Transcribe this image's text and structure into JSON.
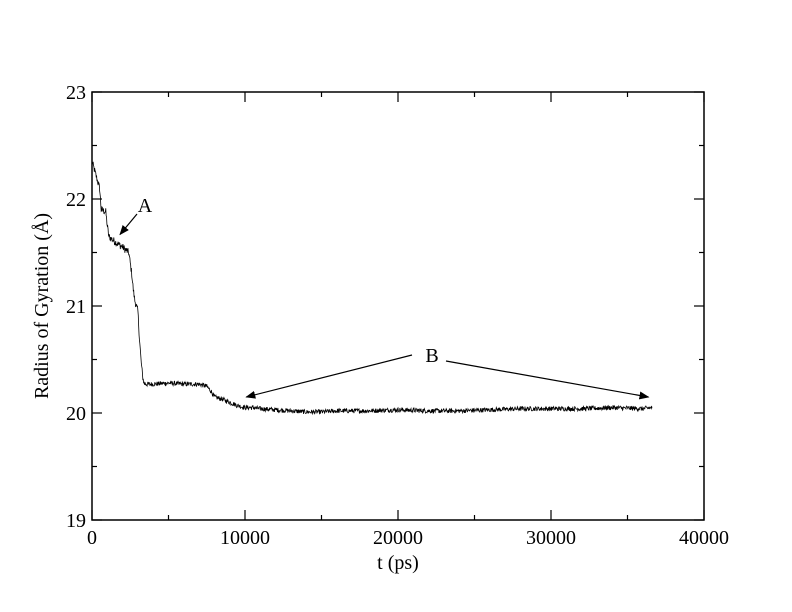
{
  "chart_data": {
    "type": "line",
    "title": "",
    "xlabel": "t (ps)",
    "ylabel": "Radius of Gyration (Å)",
    "xlim": [
      0,
      40000
    ],
    "ylim": [
      19,
      23
    ],
    "xticks": [
      "0",
      "10000",
      "20000",
      "30000",
      "40000"
    ],
    "yticks": [
      "19",
      "20",
      "21",
      "22",
      "23"
    ],
    "grid": false,
    "legend": "none",
    "series": [
      {
        "color": "#000000",
        "x": [
          0,
          300,
          500,
          600,
          900,
          1000,
          1100,
          1500,
          2000,
          2400,
          2600,
          2700,
          2800,
          3000,
          3100,
          3200,
          3300,
          3400,
          3500,
          4000,
          5000,
          6000,
          7000,
          7500,
          7800,
          8000,
          8500,
          9000,
          9500,
          10000,
          10500,
          11000,
          12000,
          13000,
          14000,
          15000,
          16000,
          18000,
          20000,
          22000,
          24000,
          26000,
          28000,
          30000,
          32000,
          34000,
          36000,
          36600
        ],
        "y": [
          22.35,
          22.2,
          22.1,
          21.9,
          21.88,
          21.75,
          21.65,
          21.6,
          21.55,
          21.5,
          21.3,
          21.15,
          21.05,
          20.95,
          20.7,
          20.5,
          20.35,
          20.28,
          20.27,
          20.27,
          20.28,
          20.27,
          20.27,
          20.25,
          20.2,
          20.15,
          20.13,
          20.1,
          20.07,
          20.05,
          20.05,
          20.04,
          20.03,
          20.02,
          20.01,
          20.01,
          20.02,
          20.02,
          20.03,
          20.02,
          20.02,
          20.03,
          20.04,
          20.04,
          20.04,
          20.05,
          20.04,
          20.05
        ]
      }
    ],
    "annotations": [
      {
        "text": "A",
        "arrow_to": [
          1700,
          21.65
        ]
      },
      {
        "text": "B",
        "arrow_to": [
          [
            11000,
            20.14
          ],
          [
            36500,
            20.14
          ]
        ]
      }
    ]
  }
}
